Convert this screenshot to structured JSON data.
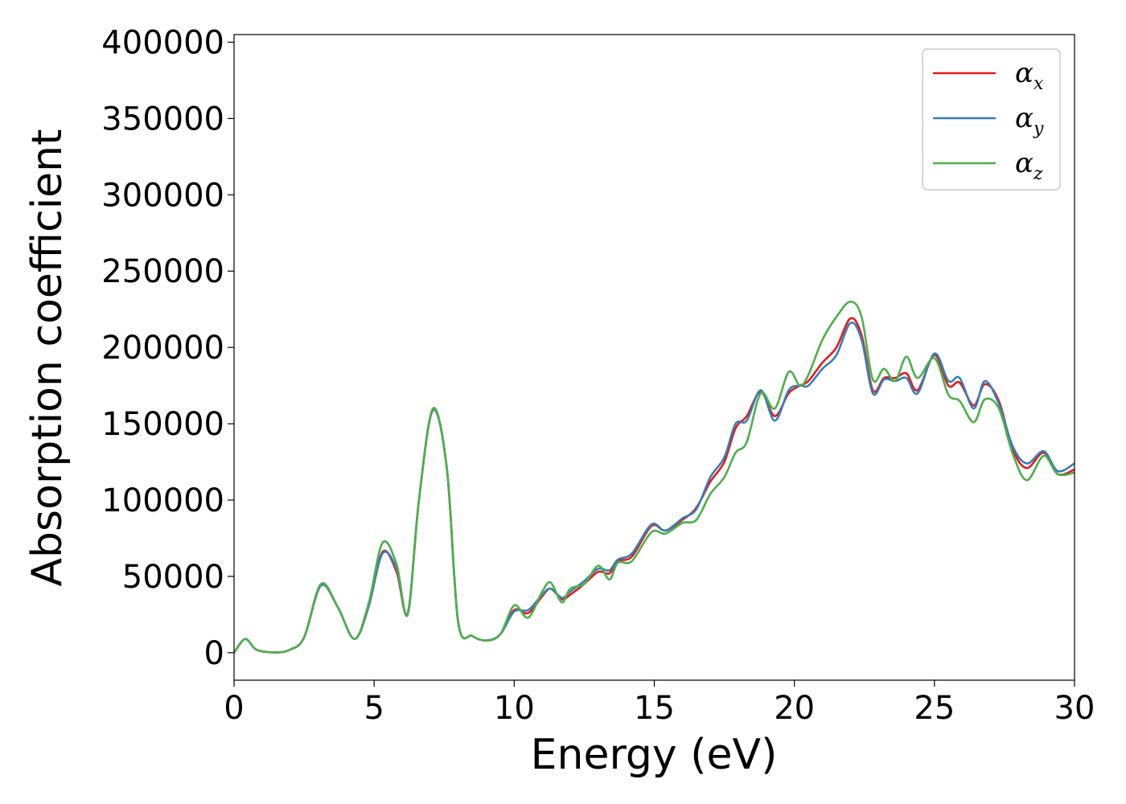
{
  "chart_data": {
    "type": "line",
    "title": "",
    "xlabel": "Energy (eV)",
    "ylabel": "Absorption coefficient",
    "xlim": [
      0,
      30
    ],
    "ylim": [
      -18000,
      405000
    ],
    "xticks": [
      "0",
      "5",
      "10",
      "15",
      "20",
      "25",
      "30"
    ],
    "xtick_values": [
      0,
      5,
      10,
      15,
      20,
      25,
      30
    ],
    "yticks": [
      "0",
      "50000",
      "100000",
      "150000",
      "200000",
      "250000",
      "300000",
      "350000",
      "400000"
    ],
    "ytick_values": [
      0,
      50000,
      100000,
      150000,
      200000,
      250000,
      300000,
      350000,
      400000
    ],
    "grid": false,
    "legend_position": "top-right",
    "series": [
      {
        "name": "α",
        "sub": "x",
        "color": "#e41a1c",
        "points": [
          [
            0,
            0
          ],
          [
            0.4,
            9000
          ],
          [
            0.8,
            2000
          ],
          [
            1.5,
            200
          ],
          [
            2.0,
            2000
          ],
          [
            2.5,
            10000
          ],
          [
            3.1,
            44000
          ],
          [
            3.7,
            30000
          ],
          [
            4.3,
            9000
          ],
          [
            4.8,
            30000
          ],
          [
            5.3,
            66000
          ],
          [
            5.8,
            53000
          ],
          [
            6.2,
            26000
          ],
          [
            6.6,
            100000
          ],
          [
            7.1,
            159000
          ],
          [
            7.6,
            120000
          ],
          [
            8.0,
            20000
          ],
          [
            8.5,
            11000
          ],
          [
            9.0,
            8000
          ],
          [
            9.5,
            12000
          ],
          [
            10.0,
            28000
          ],
          [
            10.5,
            26000
          ],
          [
            11.0,
            37000
          ],
          [
            11.3,
            42000
          ],
          [
            11.7,
            35000
          ],
          [
            12.0,
            38000
          ],
          [
            12.5,
            45000
          ],
          [
            13.0,
            53000
          ],
          [
            13.4,
            52000
          ],
          [
            13.7,
            60000
          ],
          [
            14.2,
            63000
          ],
          [
            14.9,
            83000
          ],
          [
            15.4,
            80000
          ],
          [
            16.0,
            87000
          ],
          [
            16.5,
            95000
          ],
          [
            17.0,
            112000
          ],
          [
            17.5,
            125000
          ],
          [
            17.9,
            147000
          ],
          [
            18.3,
            155000
          ],
          [
            18.8,
            171000
          ],
          [
            19.3,
            155000
          ],
          [
            19.8,
            170000
          ],
          [
            20.2,
            175000
          ],
          [
            20.5,
            178000
          ],
          [
            21.0,
            190000
          ],
          [
            21.5,
            200000
          ],
          [
            22.0,
            219000
          ],
          [
            22.4,
            208000
          ],
          [
            22.8,
            172000
          ],
          [
            23.2,
            180000
          ],
          [
            23.6,
            180000
          ],
          [
            24.0,
            183000
          ],
          [
            24.4,
            172000
          ],
          [
            25.0,
            195000
          ],
          [
            25.5,
            175000
          ],
          [
            25.9,
            177000
          ],
          [
            26.4,
            162000
          ],
          [
            26.8,
            176000
          ],
          [
            27.3,
            165000
          ],
          [
            27.8,
            133000
          ],
          [
            28.3,
            121000
          ],
          [
            28.9,
            131000
          ],
          [
            29.4,
            117000
          ],
          [
            30.0,
            120000
          ]
        ]
      },
      {
        "name": "α",
        "sub": "y",
        "color": "#377eb8",
        "points": [
          [
            0,
            0
          ],
          [
            0.4,
            9000
          ],
          [
            0.8,
            2000
          ],
          [
            1.5,
            200
          ],
          [
            2.0,
            2000
          ],
          [
            2.5,
            10000
          ],
          [
            3.1,
            44000
          ],
          [
            3.7,
            30000
          ],
          [
            4.3,
            9000
          ],
          [
            4.8,
            30000
          ],
          [
            5.3,
            65000
          ],
          [
            5.8,
            55000
          ],
          [
            6.2,
            26000
          ],
          [
            6.6,
            100000
          ],
          [
            7.1,
            159000
          ],
          [
            7.6,
            120000
          ],
          [
            8.0,
            20000
          ],
          [
            8.5,
            11000
          ],
          [
            9.0,
            8000
          ],
          [
            9.5,
            12000
          ],
          [
            10.0,
            27000
          ],
          [
            10.5,
            28000
          ],
          [
            11.0,
            38000
          ],
          [
            11.3,
            42000
          ],
          [
            11.7,
            36000
          ],
          [
            12.0,
            40000
          ],
          [
            12.5,
            47000
          ],
          [
            13.0,
            55000
          ],
          [
            13.4,
            54000
          ],
          [
            13.7,
            61000
          ],
          [
            14.2,
            65000
          ],
          [
            14.9,
            84000
          ],
          [
            15.4,
            80000
          ],
          [
            16.0,
            88000
          ],
          [
            16.5,
            94000
          ],
          [
            17.0,
            115000
          ],
          [
            17.5,
            128000
          ],
          [
            17.9,
            150000
          ],
          [
            18.3,
            152000
          ],
          [
            18.8,
            172000
          ],
          [
            19.3,
            152000
          ],
          [
            19.8,
            172000
          ],
          [
            20.2,
            175000
          ],
          [
            20.5,
            175000
          ],
          [
            21.0,
            186000
          ],
          [
            21.5,
            195000
          ],
          [
            22.0,
            216000
          ],
          [
            22.4,
            205000
          ],
          [
            22.8,
            170000
          ],
          [
            23.2,
            179000
          ],
          [
            23.6,
            178000
          ],
          [
            24.0,
            180000
          ],
          [
            24.4,
            170000
          ],
          [
            25.0,
            196000
          ],
          [
            25.5,
            178000
          ],
          [
            25.9,
            180000
          ],
          [
            26.4,
            160000
          ],
          [
            26.8,
            178000
          ],
          [
            27.3,
            163000
          ],
          [
            27.8,
            135000
          ],
          [
            28.3,
            124000
          ],
          [
            28.9,
            132000
          ],
          [
            29.4,
            119000
          ],
          [
            30.0,
            124000
          ]
        ]
      },
      {
        "name": "α",
        "sub": "z",
        "color": "#4daf4a",
        "points": [
          [
            0,
            0
          ],
          [
            0.4,
            9000
          ],
          [
            0.8,
            2000
          ],
          [
            1.5,
            200
          ],
          [
            2.0,
            2000
          ],
          [
            2.5,
            10000
          ],
          [
            3.1,
            45000
          ],
          [
            3.7,
            30000
          ],
          [
            4.3,
            9000
          ],
          [
            4.8,
            32000
          ],
          [
            5.3,
            72000
          ],
          [
            5.8,
            58000
          ],
          [
            6.2,
            25000
          ],
          [
            6.6,
            100000
          ],
          [
            7.1,
            160000
          ],
          [
            7.6,
            120000
          ],
          [
            8.0,
            20000
          ],
          [
            8.5,
            11000
          ],
          [
            9.0,
            8000
          ],
          [
            9.5,
            12000
          ],
          [
            10.0,
            31000
          ],
          [
            10.5,
            23000
          ],
          [
            11.0,
            40000
          ],
          [
            11.3,
            46000
          ],
          [
            11.7,
            33000
          ],
          [
            12.0,
            42000
          ],
          [
            12.5,
            45000
          ],
          [
            13.0,
            57000
          ],
          [
            13.4,
            48000
          ],
          [
            13.7,
            59000
          ],
          [
            14.2,
            60000
          ],
          [
            14.9,
            79000
          ],
          [
            15.4,
            78000
          ],
          [
            16.0,
            85000
          ],
          [
            16.5,
            87000
          ],
          [
            17.0,
            104000
          ],
          [
            17.5,
            115000
          ],
          [
            17.9,
            131000
          ],
          [
            18.3,
            138000
          ],
          [
            18.8,
            170000
          ],
          [
            19.3,
            160000
          ],
          [
            19.8,
            184000
          ],
          [
            20.2,
            175000
          ],
          [
            20.5,
            182000
          ],
          [
            21.0,
            205000
          ],
          [
            21.5,
            220000
          ],
          [
            22.0,
            230000
          ],
          [
            22.4,
            220000
          ],
          [
            22.8,
            179000
          ],
          [
            23.2,
            186000
          ],
          [
            23.6,
            178000
          ],
          [
            24.0,
            194000
          ],
          [
            24.4,
            180000
          ],
          [
            25.0,
            193000
          ],
          [
            25.5,
            169000
          ],
          [
            25.9,
            165000
          ],
          [
            26.4,
            151000
          ],
          [
            26.8,
            166000
          ],
          [
            27.3,
            160000
          ],
          [
            27.8,
            130000
          ],
          [
            28.3,
            113000
          ],
          [
            28.9,
            129000
          ],
          [
            29.4,
            117000
          ],
          [
            30.0,
            118000
          ]
        ]
      }
    ]
  }
}
